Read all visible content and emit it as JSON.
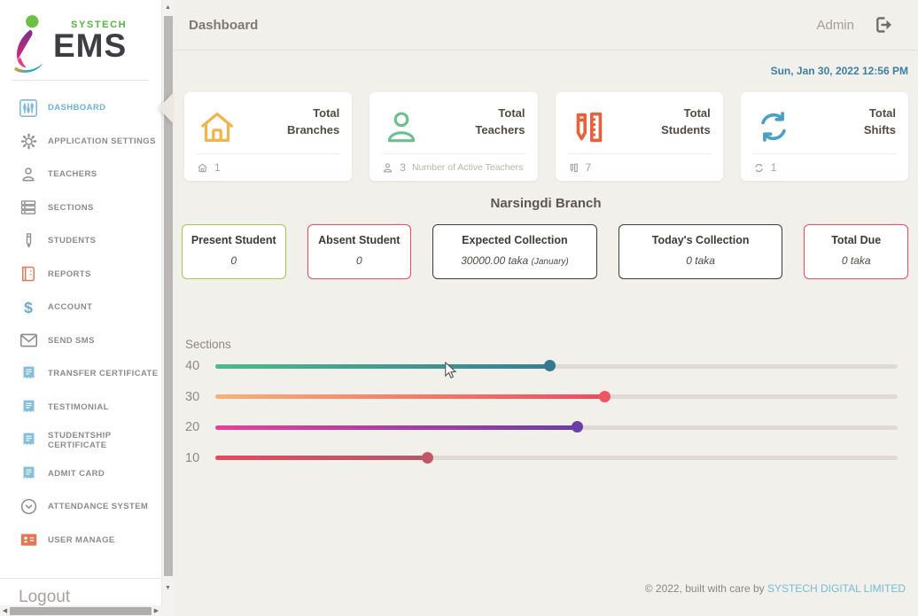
{
  "topbar": {
    "title": "Dashboard",
    "user_label": "Admin"
  },
  "datetime": "Sun, Jan 30, 2022 12:56 PM",
  "sidebar": {
    "logo": {
      "brand_top": "SYSTECH",
      "brand_main": "EMS"
    },
    "items": [
      {
        "label": "DASHBOARD",
        "icon": "dashboard-icon",
        "active": true
      },
      {
        "label": "APPLICATION SETTINGS",
        "icon": "gear-icon"
      },
      {
        "label": "TEACHERS",
        "icon": "person-icon"
      },
      {
        "label": "SECTIONS",
        "icon": "rows-icon"
      },
      {
        "label": "STUDENTS",
        "icon": "pen-icon"
      },
      {
        "label": "REPORTS",
        "icon": "book-icon"
      },
      {
        "label": "ACCOUNT",
        "icon": "dollar-icon"
      },
      {
        "label": "SEND SMS",
        "icon": "envelope-icon"
      },
      {
        "label": "TRANSFER CERTIFICATE",
        "icon": "certificate-icon"
      },
      {
        "label": "TESTIMONIAL",
        "icon": "certificate-icon"
      },
      {
        "label": "STUDENTSHIP CERTIFICATE",
        "icon": "certificate-icon"
      },
      {
        "label": "ADMIT CARD",
        "icon": "certificate-icon"
      },
      {
        "label": "ATTENDANCE SYSTEM",
        "icon": "circle-chevron-icon"
      },
      {
        "label": "USER MANAGE",
        "icon": "id-card-icon"
      }
    ],
    "logout_label": "Logout"
  },
  "stat_cards": [
    {
      "title_line1": "Total",
      "title_line2": "Branches",
      "icon": "home-icon",
      "icon_color": "#f0b64e",
      "footer_value": "1",
      "footer_note": ""
    },
    {
      "title_line1": "Total",
      "title_line2": "Teachers",
      "icon": "person-icon",
      "icon_color": "#6cbf8e",
      "footer_value": "3",
      "footer_note": "Number of Active Teachers"
    },
    {
      "title_line1": "Total",
      "title_line2": "Students",
      "icon": "pencil-ruler-icon",
      "icon_color": "#e8603c",
      "footer_value": "7",
      "footer_note": ""
    },
    {
      "title_line1": "Total",
      "title_line2": "Shifts",
      "icon": "sync-icon",
      "icon_color": "#4ba0c2",
      "footer_value": "1",
      "footer_note": ""
    }
  ],
  "branch_heading": "Narsingdi Branch",
  "info_cards": [
    {
      "title": "Present Student",
      "value": "0",
      "value_note": "",
      "border_color": "#a2c94c"
    },
    {
      "title": "Absent Student",
      "value": "0",
      "value_note": "",
      "border_color": "#f0485c"
    },
    {
      "title": "Expected Collection",
      "value": "30000.00 taka",
      "value_note": "(January)",
      "border_color": "#3c3c3c"
    },
    {
      "title": "Today's Collection",
      "value": "0 taka",
      "value_note": "",
      "border_color": "#3c3c3c"
    },
    {
      "title": "Total Due",
      "value": "0 taka",
      "value_note": "",
      "border_color": "#f0485c"
    }
  ],
  "chart_data": {
    "type": "bar",
    "title": "Sections",
    "categories": [
      "40",
      "30",
      "20",
      "10"
    ],
    "values_percent": [
      49,
      57,
      53,
      31
    ],
    "track_color": "#dedbd5",
    "colors": [
      {
        "start": "#4cba8b",
        "end": "#3a7e93",
        "handle": "#35788f"
      },
      {
        "start": "#f9b078",
        "end": "#ee4b5e",
        "handle": "#f25562"
      },
      {
        "start": "#e6419b",
        "end": "#6b3fa4",
        "handle": "#6b3fa4"
      },
      {
        "start": "#e9485e",
        "end": "#b15a6b",
        "handle": "#bf5766"
      }
    ]
  },
  "footer": {
    "text": "© 2022, built with care by ",
    "link": "SYSTECH DIGITAL LIMITED"
  }
}
